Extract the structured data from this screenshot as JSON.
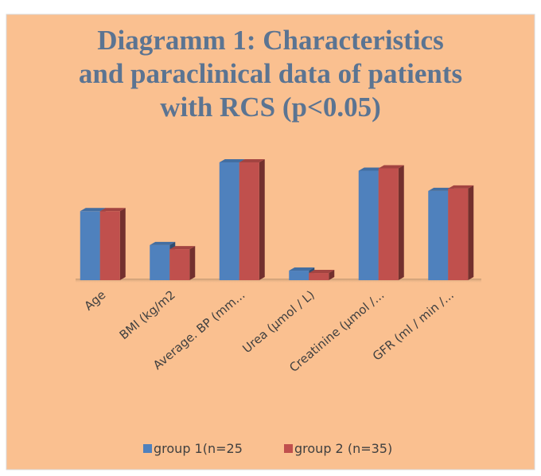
{
  "chart_data": {
    "type": "bar3d",
    "title": [
      "Diagramm 1: Characteristics",
      "and paraclinical data of patients",
      "with RCS (p<0.05)"
    ],
    "categories": [
      "Age",
      "BMI (kg/m2",
      "Average. BP (mm...",
      "Urea (µmol / L)",
      "Creatinine (µmol /...",
      "GFR (ml / min /..."
    ],
    "series": [
      {
        "name": "group 1(n=25",
        "color": "#4f81bd",
        "values": [
          58,
          29.5,
          99,
          8,
          92,
          75
        ]
      },
      {
        "name": "group 2 (n=35)",
        "color": "#c0504d",
        "values": [
          58,
          26,
          99,
          6,
          94,
          77
        ]
      }
    ],
    "legend": "bottom"
  }
}
